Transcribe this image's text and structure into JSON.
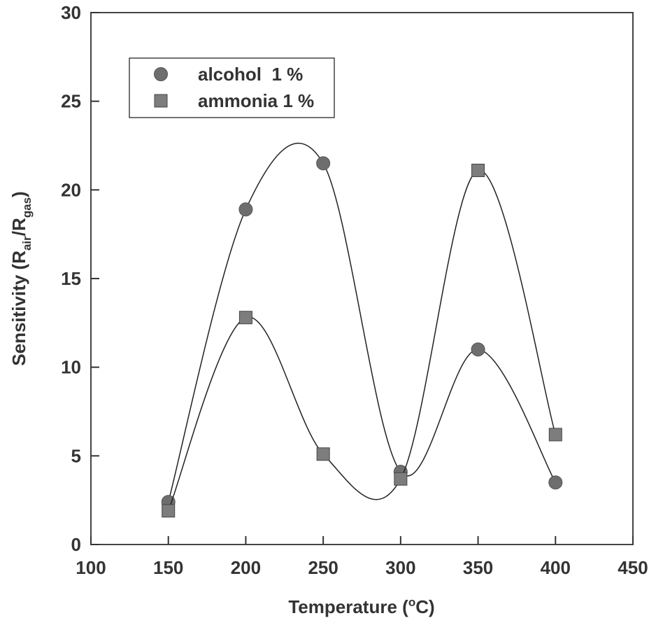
{
  "chart_data": {
    "type": "scatter",
    "xlabel_parts": [
      "Temperature (",
      "o",
      "C)"
    ],
    "ylabel_parts": [
      "Sensitivity (R",
      "air",
      "/R",
      "gas",
      ")"
    ],
    "xlim": [
      100,
      450
    ],
    "xticks": [
      100,
      150,
      200,
      250,
      300,
      350,
      400,
      450
    ],
    "ylim": [
      0,
      30
    ],
    "yticks": [
      0,
      5,
      10,
      15,
      20,
      25,
      30
    ],
    "smooth_lines": true,
    "legend": "upper left",
    "series": [
      {
        "name": "alcohol  1 %",
        "marker": "circle",
        "color": "#6e6e6e",
        "x": [
          150,
          200,
          250,
          300,
          350,
          400
        ],
        "values": [
          2.4,
          18.9,
          21.5,
          4.1,
          11.0,
          3.5
        ]
      },
      {
        "name": "ammonia 1 %",
        "marker": "square",
        "color": "#7d7d7d",
        "x": [
          150,
          200,
          250,
          300,
          350,
          400
        ],
        "values": [
          1.9,
          12.8,
          5.1,
          3.7,
          21.1,
          6.2
        ]
      }
    ]
  }
}
